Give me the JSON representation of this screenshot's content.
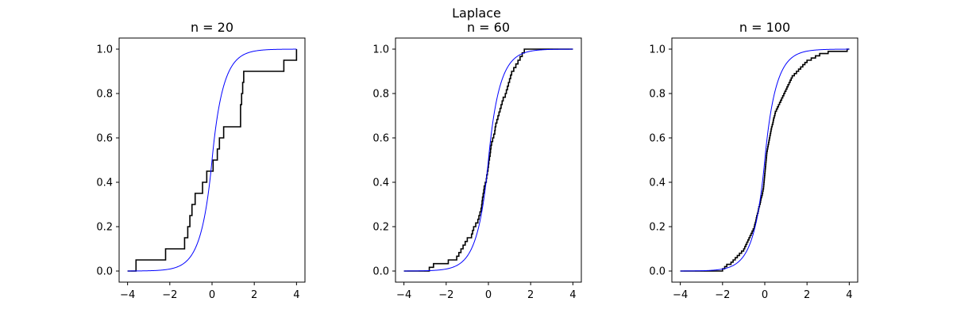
{
  "figure": {
    "suptitle": "Laplace"
  },
  "chart_data": [
    {
      "type": "line",
      "title": "n = 20",
      "xlim": [
        -4.4,
        4.4
      ],
      "ylim": [
        -0.05,
        1.05
      ],
      "xticks": [
        -4,
        -2,
        0,
        2,
        4
      ],
      "yticks": [
        0.0,
        0.2,
        0.4,
        0.6,
        0.8,
        1.0
      ],
      "xtick_labels": [
        "−4",
        "−2",
        "0",
        "2",
        "4"
      ],
      "ytick_labels": [
        "0.0",
        "0.2",
        "0.4",
        "0.6",
        "0.8",
        "1.0"
      ],
      "series": [
        {
          "kind": "ecdf",
          "color": "#000000",
          "x_start": -4.0,
          "x_end": 4.0,
          "jumps": [
            -3.6,
            -2.2,
            -1.3,
            -1.15,
            -1.05,
            -0.95,
            -0.8,
            -0.45,
            -0.25,
            0.05,
            0.25,
            0.35,
            0.55,
            1.35,
            1.35,
            1.4,
            1.45,
            1.5,
            3.4,
            4.0
          ]
        },
        {
          "kind": "cdf",
          "distribution": "laplace",
          "loc": 0,
          "scale": 0.5,
          "color": "#0000ff"
        }
      ]
    },
    {
      "type": "line",
      "title": "n = 60",
      "xlim": [
        -4.4,
        4.4
      ],
      "ylim": [
        -0.05,
        1.05
      ],
      "xticks": [
        -4,
        -2,
        0,
        2,
        4
      ],
      "yticks": [
        0.0,
        0.2,
        0.4,
        0.6,
        0.8,
        1.0
      ],
      "xtick_labels": [
        "−4",
        "−2",
        "0",
        "2",
        "4"
      ],
      "ytick_labels": [
        "0.0",
        "0.2",
        "0.4",
        "0.6",
        "0.8",
        "1.0"
      ],
      "series": [
        {
          "kind": "ecdf",
          "color": "#000000",
          "x_start": -4.0,
          "x_end": 4.0,
          "jumps": [
            -2.8,
            -2.6,
            -1.9,
            -1.5,
            -1.4,
            -1.3,
            -1.2,
            -1.1,
            -1.0,
            -0.8,
            -0.75,
            -0.7,
            -0.6,
            -0.5,
            -0.45,
            -0.4,
            -0.35,
            -0.32,
            -0.3,
            -0.28,
            -0.25,
            -0.22,
            -0.2,
            -0.15,
            -0.1,
            -0.08,
            -0.05,
            -0.02,
            0.0,
            0.02,
            0.05,
            0.08,
            0.1,
            0.12,
            0.15,
            0.2,
            0.25,
            0.3,
            0.32,
            0.35,
            0.4,
            0.45,
            0.5,
            0.55,
            0.6,
            0.65,
            0.7,
            0.8,
            0.85,
            0.9,
            0.95,
            1.0,
            1.05,
            1.1,
            1.2,
            1.3,
            1.4,
            1.5,
            1.6,
            1.7
          ]
        },
        {
          "kind": "cdf",
          "distribution": "laplace",
          "loc": 0,
          "scale": 0.5,
          "color": "#0000ff"
        }
      ]
    },
    {
      "type": "line",
      "title": "n = 100",
      "xlim": [
        -4.4,
        4.4
      ],
      "ylim": [
        -0.05,
        1.05
      ],
      "xticks": [
        -4,
        -2,
        0,
        2,
        4
      ],
      "yticks": [
        0.0,
        0.2,
        0.4,
        0.6,
        0.8,
        1.0
      ],
      "xtick_labels": [
        "−4",
        "−2",
        "0",
        "2",
        "4"
      ],
      "ytick_labels": [
        "0.0",
        "0.2",
        "0.4",
        "0.6",
        "0.8",
        "1.0"
      ],
      "series": [
        {
          "kind": "ecdf",
          "color": "#000000",
          "x_start": -4.0,
          "x_end": 4.0,
          "jumps": [
            -2.0,
            -1.9,
            -1.8,
            -1.6,
            -1.5,
            -1.4,
            -1.3,
            -1.2,
            -1.1,
            -1.0,
            -0.95,
            -0.9,
            -0.85,
            -0.8,
            -0.75,
            -0.7,
            -0.65,
            -0.6,
            -0.55,
            -0.5,
            -0.48,
            -0.45,
            -0.42,
            -0.4,
            -0.38,
            -0.35,
            -0.32,
            -0.3,
            -0.28,
            -0.25,
            -0.22,
            -0.2,
            -0.18,
            -0.15,
            -0.12,
            -0.1,
            -0.08,
            -0.06,
            -0.05,
            -0.04,
            -0.03,
            -0.02,
            -0.01,
            0.0,
            0.01,
            0.02,
            0.03,
            0.04,
            0.05,
            0.06,
            0.07,
            0.08,
            0.09,
            0.1,
            0.12,
            0.14,
            0.16,
            0.18,
            0.2,
            0.22,
            0.24,
            0.26,
            0.28,
            0.3,
            0.32,
            0.35,
            0.38,
            0.4,
            0.42,
            0.45,
            0.48,
            0.5,
            0.55,
            0.6,
            0.65,
            0.7,
            0.75,
            0.8,
            0.85,
            0.9,
            0.95,
            1.0,
            1.05,
            1.1,
            1.15,
            1.2,
            1.25,
            1.3,
            1.4,
            1.5,
            1.6,
            1.7,
            1.8,
            1.9,
            2.0,
            2.2,
            2.4,
            2.6,
            3.0,
            3.9
          ]
        },
        {
          "kind": "cdf",
          "distribution": "laplace",
          "loc": 0,
          "scale": 0.5,
          "color": "#0000ff"
        }
      ]
    }
  ]
}
